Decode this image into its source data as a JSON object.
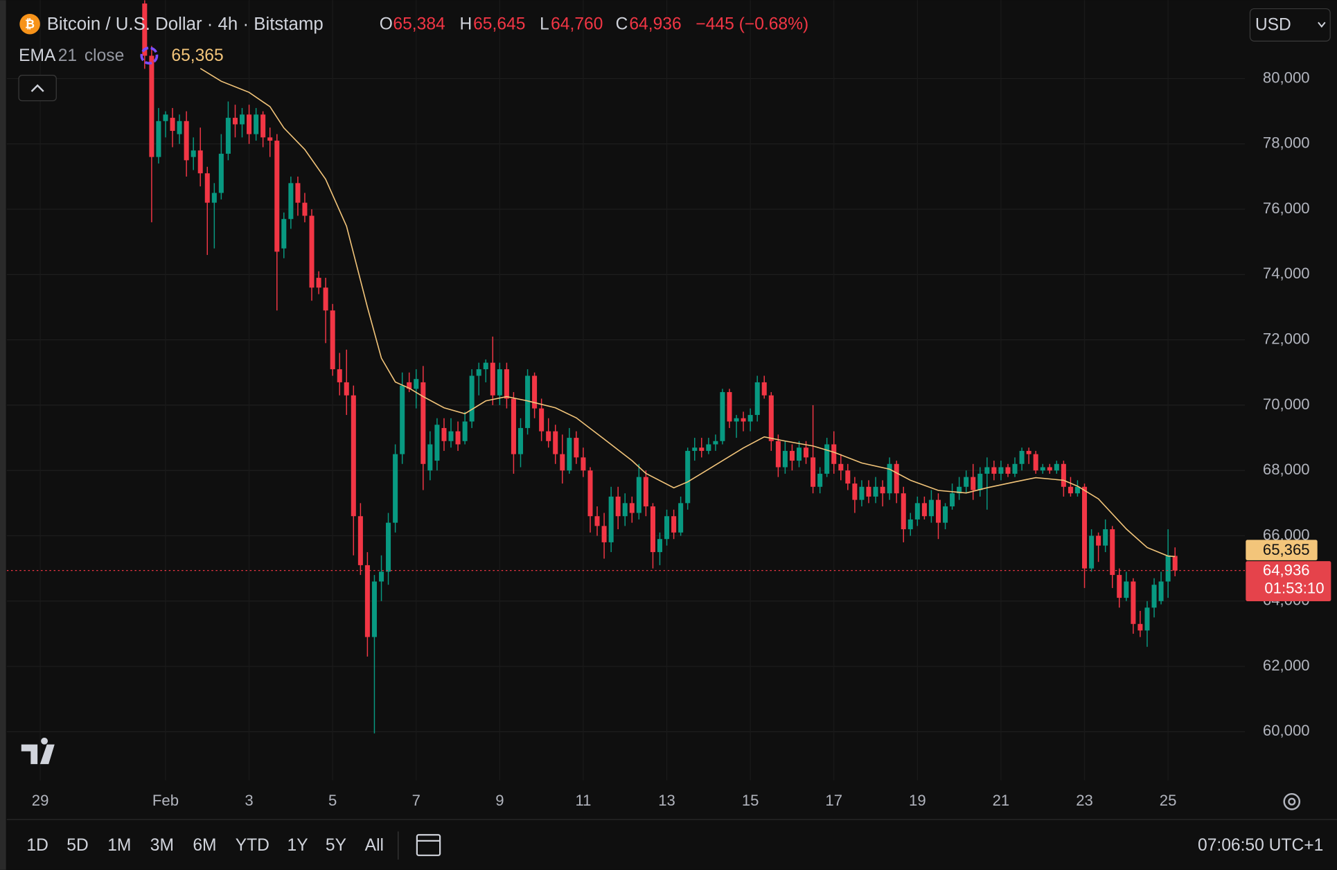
{
  "chart_data": {
    "type": "candlestick",
    "title": "Bitcoin / U.S. Dollar · 4h · Bitstamp",
    "ohlc_header": [
      {
        "key": "O",
        "value": "65,384"
      },
      {
        "key": "H",
        "value": "65,645"
      },
      {
        "key": "L",
        "value": "64,760"
      },
      {
        "key": "C",
        "value": "64,936"
      }
    ],
    "change": "−445 (−0.68%)",
    "currency": "USD",
    "up_color": "#089981",
    "down_color": "#f23645",
    "grid": true,
    "xlim": [
      -0.8,
      28.84
    ],
    "xticks": [
      {
        "value": 0,
        "label": "29"
      },
      {
        "value": 3,
        "label": "Feb"
      },
      {
        "value": 5,
        "label": "3"
      },
      {
        "value": 7,
        "label": "5"
      },
      {
        "value": 9,
        "label": "7"
      },
      {
        "value": 11,
        "label": "9"
      },
      {
        "value": 13,
        "label": "11"
      },
      {
        "value": 15,
        "label": "13"
      },
      {
        "value": 17,
        "label": "15"
      },
      {
        "value": 19,
        "label": "17"
      },
      {
        "value": 21,
        "label": "19"
      },
      {
        "value": 23,
        "label": "21"
      },
      {
        "value": 25,
        "label": "23"
      },
      {
        "value": 27,
        "label": "25"
      }
    ],
    "ylim": [
      58512,
      82402
    ],
    "yticks": [
      {
        "value": 60000,
        "label": "60,000"
      },
      {
        "value": 62000,
        "label": "62,000"
      },
      {
        "value": 64000,
        "label": "64,000"
      },
      {
        "value": 66000,
        "label": "66,000"
      },
      {
        "value": 68000,
        "label": "68,000"
      },
      {
        "value": 70000,
        "label": "70,000"
      },
      {
        "value": 72000,
        "label": "72,000"
      },
      {
        "value": 74000,
        "label": "74,000"
      },
      {
        "value": 76000,
        "label": "76,000"
      },
      {
        "value": 78000,
        "label": "78,000"
      },
      {
        "value": 80000,
        "label": "80,000"
      }
    ],
    "x": [
      2.5,
      2.667,
      2.833,
      3,
      3.167,
      3.333,
      3.5,
      3.667,
      3.833,
      4,
      4.167,
      4.333,
      4.5,
      4.667,
      4.833,
      5,
      5.167,
      5.333,
      5.5,
      5.667,
      5.833,
      6,
      6.167,
      6.333,
      6.5,
      6.667,
      6.833,
      7,
      7.167,
      7.333,
      7.5,
      7.667,
      7.833,
      8,
      8.167,
      8.333,
      8.5,
      8.667,
      8.833,
      9,
      9.167,
      9.333,
      9.5,
      9.667,
      9.833,
      10,
      10.167,
      10.333,
      10.5,
      10.667,
      10.833,
      11,
      11.167,
      11.333,
      11.5,
      11.667,
      11.833,
      12,
      12.167,
      12.333,
      12.5,
      12.667,
      12.833,
      13,
      13.167,
      13.333,
      13.5,
      13.667,
      13.833,
      14,
      14.167,
      14.333,
      14.5,
      14.667,
      14.833,
      15,
      15.167,
      15.333,
      15.5,
      15.667,
      15.833,
      16,
      16.167,
      16.333,
      16.5,
      16.667,
      16.833,
      17,
      17.167,
      17.333,
      17.5,
      17.667,
      17.833,
      18,
      18.167,
      18.333,
      18.5,
      18.667,
      18.833,
      19,
      19.167,
      19.333,
      19.5,
      19.667,
      19.833,
      20,
      20.167,
      20.333,
      20.5,
      20.667,
      20.833,
      21,
      21.167,
      21.333,
      21.5,
      21.667,
      21.833,
      22,
      22.167,
      22.333,
      22.5,
      22.667,
      22.833,
      23,
      23.167,
      23.333,
      23.5,
      23.667,
      23.833,
      24,
      24.167,
      24.333,
      24.5,
      24.667,
      24.833,
      25,
      25.167,
      25.333,
      25.5,
      25.667,
      25.833,
      26,
      26.167,
      26.333,
      26.5,
      26.667,
      26.833,
      27,
      27.167
    ],
    "open": [
      82300,
      80700,
      77600,
      78700,
      78800,
      78300,
      78700,
      77600,
      77800,
      77100,
      76200,
      76500,
      77700,
      78800,
      78600,
      78900,
      78300,
      78900,
      78200,
      78100,
      74800,
      75700,
      76800,
      76200,
      75800,
      73900,
      73600,
      72900,
      71100,
      70700,
      70300,
      66600,
      65100,
      62900,
      64600,
      64900,
      66400,
      68500,
      70700,
      70500,
      70700,
      68000,
      68300,
      69300,
      68900,
      69200,
      68900,
      69500,
      70900,
      71100,
      71300,
      70300,
      71100,
      70200,
      68500,
      69300,
      70900,
      69900,
      69200,
      69200,
      68500,
      68000,
      69000,
      68400,
      68000,
      66600,
      66300,
      65800,
      67200,
      66600,
      67000,
      66700,
      67800,
      66900,
      65500,
      65900,
      66600,
      66100,
      67000,
      68600,
      68700,
      68600,
      68800,
      68900,
      70400,
      69500,
      69600,
      69500,
      69700,
      70700,
      70300,
      68900,
      68100,
      68600,
      68300,
      68700,
      68400,
      67500,
      67900,
      68800,
      68200,
      68000,
      67600,
      67100,
      67500,
      67200,
      67500,
      67300,
      68200,
      67300,
      66200,
      66500,
      67000,
      66600,
      67100,
      66400,
      66900,
      67300,
      67500,
      67800,
      67400,
      67900,
      68100,
      67900,
      68100,
      67900,
      68200,
      68600,
      68500,
      68000,
      68100,
      68000,
      68200,
      67500,
      67300,
      67500,
      65000,
      66000,
      65700,
      66200,
      64800,
      64100,
      64600,
      63300,
      63100,
      63800,
      64000,
      64600,
      65384
    ],
    "high": [
      82400,
      81000,
      79100,
      79000,
      79100,
      78900,
      79000,
      78200,
      78500,
      77300,
      76800,
      78300,
      79300,
      79200,
      79100,
      79200,
      79100,
      79000,
      78500,
      78300,
      75900,
      77000,
      77000,
      76500,
      76000,
      74100,
      73900,
      73100,
      71600,
      71700,
      70600,
      67000,
      65500,
      64800,
      65400,
      66700,
      68800,
      71000,
      71000,
      71100,
      71200,
      69200,
      69600,
      69600,
      69600,
      69500,
      69800,
      71100,
      71300,
      71400,
      72100,
      71300,
      71300,
      70400,
      69600,
      71100,
      71000,
      70200,
      69600,
      69400,
      69100,
      69300,
      69200,
      68700,
      68100,
      66900,
      66700,
      67500,
      67500,
      67300,
      67200,
      68200,
      68000,
      67000,
      66100,
      66800,
      66800,
      67200,
      68700,
      69000,
      69000,
      69000,
      69100,
      70500,
      70500,
      69700,
      69800,
      69900,
      70900,
      70900,
      70400,
      69100,
      68900,
      68800,
      68900,
      68900,
      70000,
      68100,
      69000,
      69200,
      68500,
      68200,
      67800,
      67700,
      67700,
      67800,
      67700,
      68400,
      68300,
      67500,
      66700,
      67200,
      67200,
      67400,
      67300,
      67000,
      67600,
      67800,
      68000,
      68200,
      68100,
      68400,
      68300,
      68300,
      68200,
      68400,
      68700,
      68700,
      68600,
      68200,
      68200,
      68300,
      68300,
      67800,
      67700,
      67600,
      66200,
      66100,
      66500,
      66300,
      65000,
      64900,
      64700,
      63700,
      64000,
      64700,
      64900,
      66200,
      65645
    ],
    "low": [
      80300,
      75600,
      77400,
      78200,
      77900,
      78000,
      77000,
      77200,
      76700,
      74600,
      74800,
      76300,
      77500,
      78200,
      78200,
      78000,
      78100,
      77900,
      77600,
      72900,
      74500,
      75400,
      75800,
      75600,
      73200,
      73400,
      71900,
      70900,
      70300,
      69700,
      65400,
      64800,
      62300,
      59950,
      64000,
      64500,
      66100,
      68200,
      70400,
      69900,
      67400,
      67700,
      68000,
      68600,
      68700,
      68600,
      68800,
      69300,
      70300,
      70700,
      70000,
      70000,
      69900,
      67900,
      68100,
      69100,
      69600,
      68900,
      68700,
      68200,
      67600,
      67900,
      68200,
      67800,
      66100,
      66000,
      65300,
      65500,
      66200,
      66300,
      66400,
      66500,
      66600,
      65000,
      65100,
      65700,
      65900,
      66000,
      66800,
      68300,
      68400,
      68500,
      68600,
      68800,
      69300,
      69000,
      69200,
      69200,
      69500,
      70200,
      68600,
      67800,
      67900,
      68000,
      68100,
      68200,
      67300,
      67300,
      67800,
      67900,
      67700,
      67400,
      66700,
      66900,
      67000,
      67000,
      66900,
      67100,
      67000,
      65800,
      66000,
      66300,
      66500,
      66400,
      65900,
      66200,
      66800,
      67100,
      67300,
      67100,
      67200,
      66800,
      67700,
      67700,
      67800,
      67800,
      68000,
      68200,
      67900,
      67900,
      67900,
      67900,
      67200,
      67200,
      67200,
      64400,
      64900,
      65200,
      65500,
      64400,
      63800,
      64000,
      63000,
      62900,
      62600,
      63500,
      63900,
      64100,
      64760
    ],
    "close": [
      80700,
      77600,
      78700,
      78900,
      78400,
      78700,
      77500,
      77800,
      77100,
      76200,
      76500,
      77700,
      78800,
      78600,
      78900,
      78300,
      78900,
      78200,
      78100,
      74700,
      75700,
      76800,
      76200,
      75800,
      73600,
      73600,
      72900,
      71100,
      70700,
      70300,
      66600,
      65100,
      62900,
      64600,
      64900,
      66400,
      68500,
      70600,
      70500,
      70800,
      68200,
      68800,
      69400,
      68900,
      69200,
      68800,
      69500,
      70900,
      71100,
      71300,
      70300,
      71100,
      70200,
      68500,
      69300,
      70900,
      69900,
      69200,
      68900,
      68500,
      68000,
      69000,
      68400,
      68000,
      66600,
      66300,
      65800,
      67200,
      66600,
      67000,
      66700,
      67800,
      66900,
      65500,
      65900,
      66600,
      66100,
      67000,
      68600,
      68700,
      68600,
      68800,
      68900,
      70400,
      69500,
      69600,
      69500,
      69700,
      70700,
      70300,
      68900,
      68100,
      68600,
      68300,
      68700,
      68400,
      67500,
      67900,
      68800,
      68200,
      68000,
      67600,
      67100,
      67500,
      67200,
      67500,
      67300,
      68200,
      67300,
      66200,
      66500,
      67000,
      66600,
      67100,
      66400,
      66900,
      67300,
      67500,
      67800,
      67400,
      67900,
      68100,
      67900,
      68100,
      67900,
      68200,
      68600,
      68500,
      68000,
      68100,
      68000,
      68200,
      67500,
      67300,
      67500,
      65000,
      66000,
      65700,
      66200,
      64800,
      64100,
      64600,
      63300,
      63100,
      63800,
      64500,
      64600,
      65400,
      64936
    ],
    "indicator": {
      "name": "EMA",
      "length": 21,
      "source": "close",
      "color": "#f3c57a",
      "last": {
        "value": 65365,
        "label": "65,365"
      },
      "x": [
        3.833,
        4.333,
        5,
        5.5,
        5.833,
        6.333,
        6.833,
        7.333,
        7.833,
        8.167,
        8.5,
        8.833,
        9.167,
        9.667,
        10.167,
        10.667,
        11.167,
        11.667,
        12.333,
        12.833,
        13.5,
        14.167,
        14.5,
        15.167,
        15.5,
        16.167,
        16.833,
        17.333,
        17.833,
        18.5,
        19,
        19.667,
        20.333,
        20.833,
        21.5,
        22.167,
        22.667,
        23.333,
        23.833,
        24.5,
        24.833,
        25.333,
        26,
        26.5,
        27,
        27.167
      ],
      "values": [
        80310,
        79920,
        79580,
        79140,
        78490,
        77830,
        76920,
        75480,
        73000,
        71440,
        70710,
        70520,
        70260,
        69920,
        69740,
        70130,
        70260,
        70130,
        69920,
        69610,
        68960,
        68300,
        67910,
        67470,
        67650,
        68170,
        68690,
        69030,
        68900,
        68750,
        68560,
        68230,
        68040,
        67700,
        67390,
        67310,
        67470,
        67650,
        67780,
        67700,
        67520,
        67130,
        66210,
        65640,
        65380,
        65365
      ]
    },
    "price_line": {
      "value": 64936,
      "label": "64,936",
      "countdown": "01:53:10"
    },
    "ranges": [
      "1D",
      "5D",
      "1M",
      "3M",
      "6M",
      "YTD",
      "1Y",
      "5Y",
      "All"
    ],
    "clock": "07:06:50 UTC+1"
  }
}
